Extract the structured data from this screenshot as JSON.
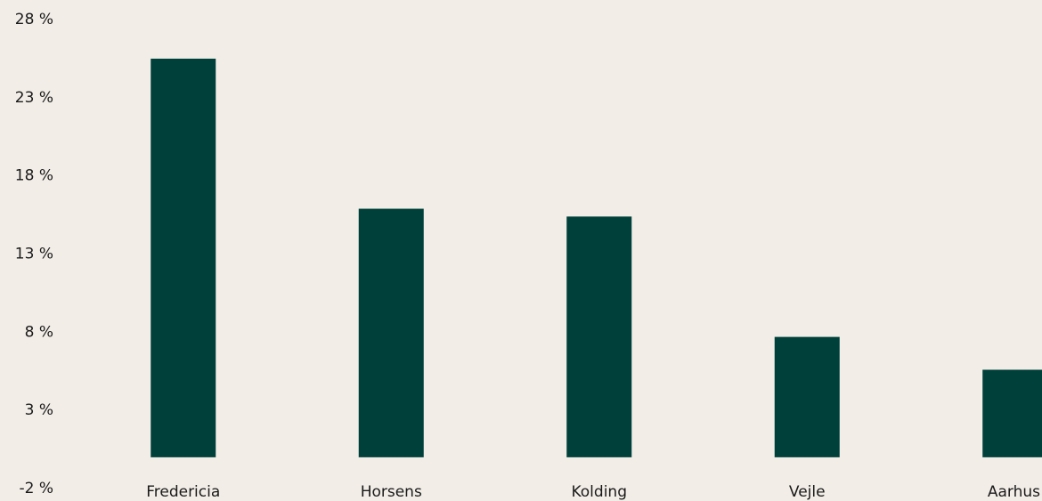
{
  "chart_data": {
    "type": "bar",
    "categories": [
      "Fredericia",
      "Horsens",
      "Kolding",
      "Vejle",
      "Aarhus"
    ],
    "values": [
      25.5,
      15.9,
      15.4,
      7.7,
      5.6
    ],
    "color": "#00403a",
    "ylim": [
      -2,
      28
    ],
    "yticks": [
      {
        "value": -2,
        "label": "-2 %"
      },
      {
        "value": 3,
        "label": "3 %"
      },
      {
        "value": 8,
        "label": "8 %"
      },
      {
        "value": 13,
        "label": "13 %"
      },
      {
        "value": 18,
        "label": "18 %"
      },
      {
        "value": 23,
        "label": "23 %"
      },
      {
        "value": 28,
        "label": "28 %"
      }
    ],
    "grid": false
  }
}
